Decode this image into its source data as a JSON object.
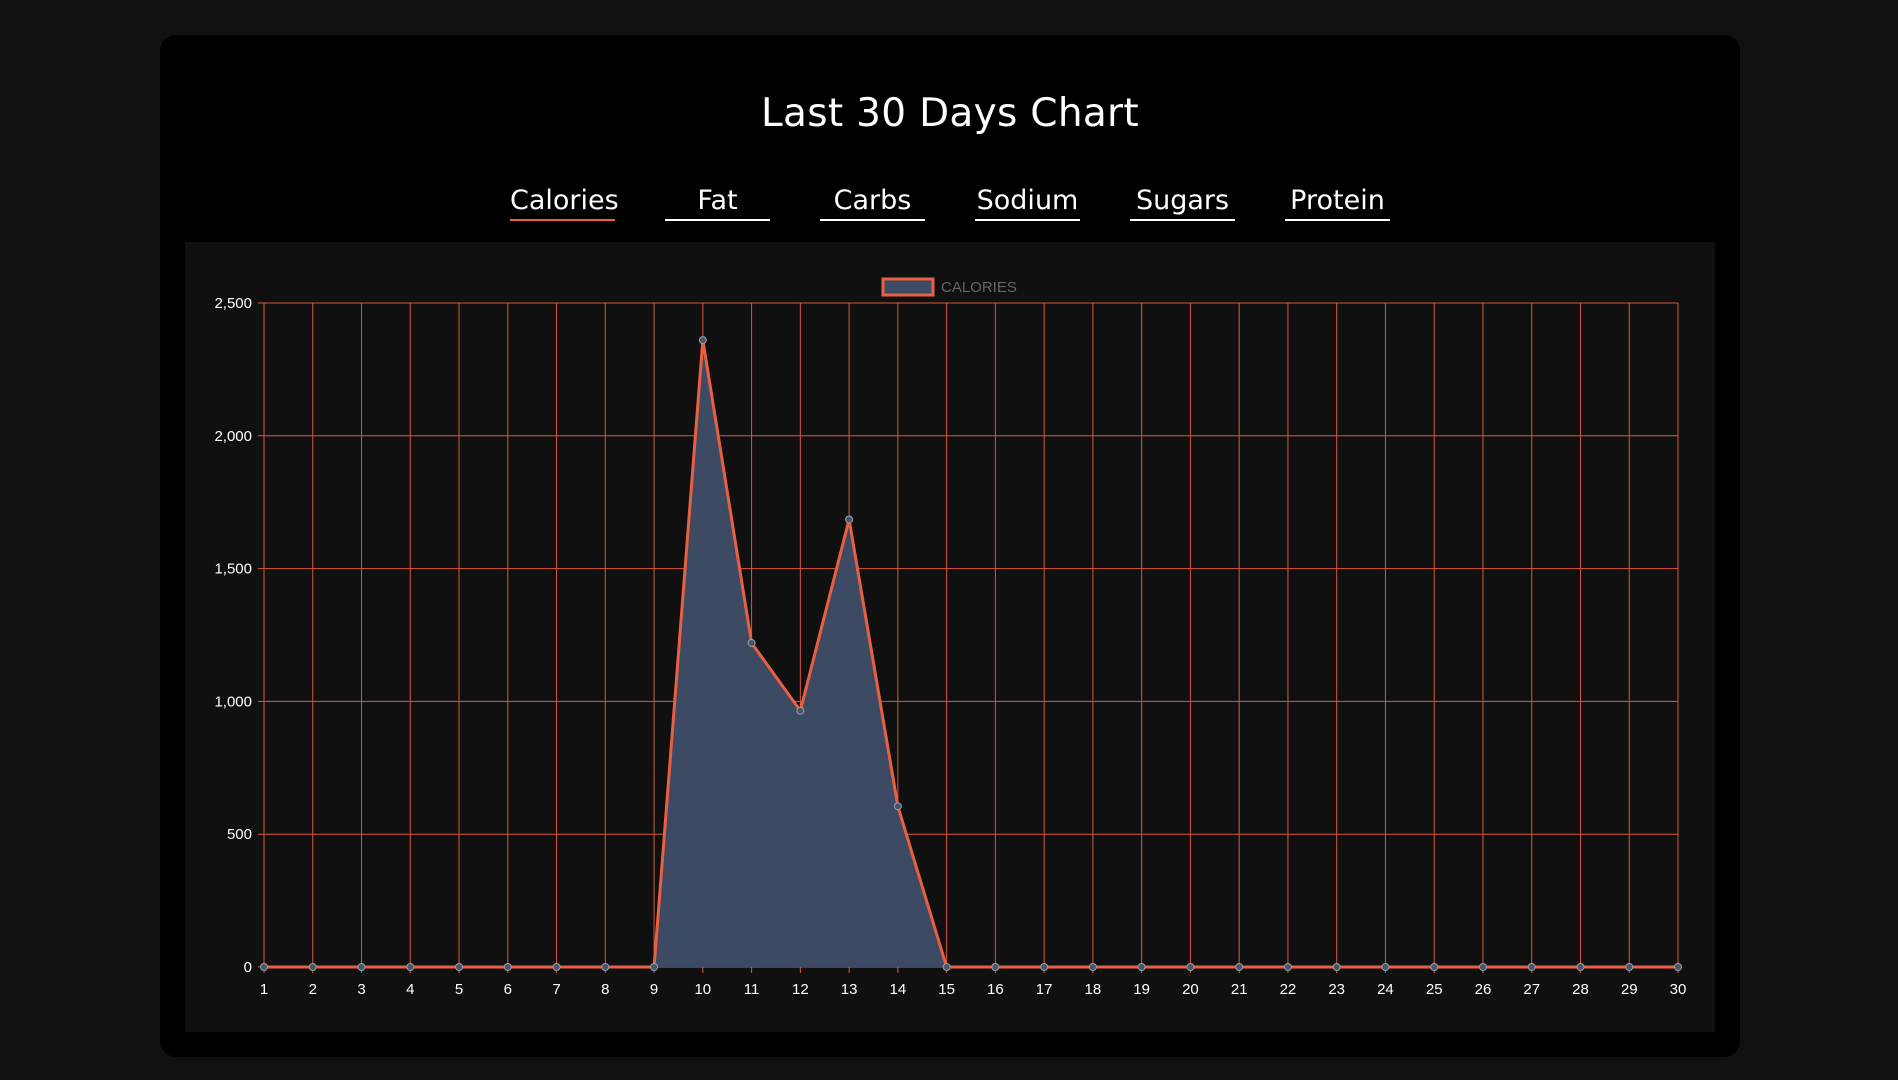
{
  "title": "Last 30 Days Chart",
  "tabs": [
    {
      "label": "Calories",
      "active": true
    },
    {
      "label": "Fat",
      "active": false
    },
    {
      "label": "Carbs",
      "active": false
    },
    {
      "label": "Sodium",
      "active": false
    },
    {
      "label": "Sugars",
      "active": false
    },
    {
      "label": "Protein",
      "active": false
    }
  ],
  "colors": {
    "accent": "#e8603f",
    "fill": "#3d4a63",
    "grid": "#d9583c",
    "card_bg": "#000000",
    "panel_bg": "#101010",
    "page_bg": "#111111"
  },
  "chart_data": {
    "type": "area",
    "legend": {
      "label": "CALORIES",
      "position": "top-center"
    },
    "x": [
      1,
      2,
      3,
      4,
      5,
      6,
      7,
      8,
      9,
      10,
      11,
      12,
      13,
      14,
      15,
      16,
      17,
      18,
      19,
      20,
      21,
      22,
      23,
      24,
      25,
      26,
      27,
      28,
      29,
      30
    ],
    "series": [
      {
        "name": "CALORIES",
        "values": [
          0,
          0,
          0,
          0,
          0,
          0,
          0,
          0,
          0,
          2360,
          1220,
          965,
          1685,
          605,
          0,
          0,
          0,
          0,
          0,
          0,
          0,
          0,
          0,
          0,
          0,
          0,
          0,
          0,
          0,
          0
        ]
      }
    ],
    "ylim": [
      0,
      2500
    ],
    "yticks": [
      0,
      500,
      1000,
      1500,
      2000,
      2500
    ],
    "ytick_labels": [
      "0",
      "500",
      "1,000",
      "1,500",
      "2,000",
      "2,500"
    ],
    "grid": true
  }
}
